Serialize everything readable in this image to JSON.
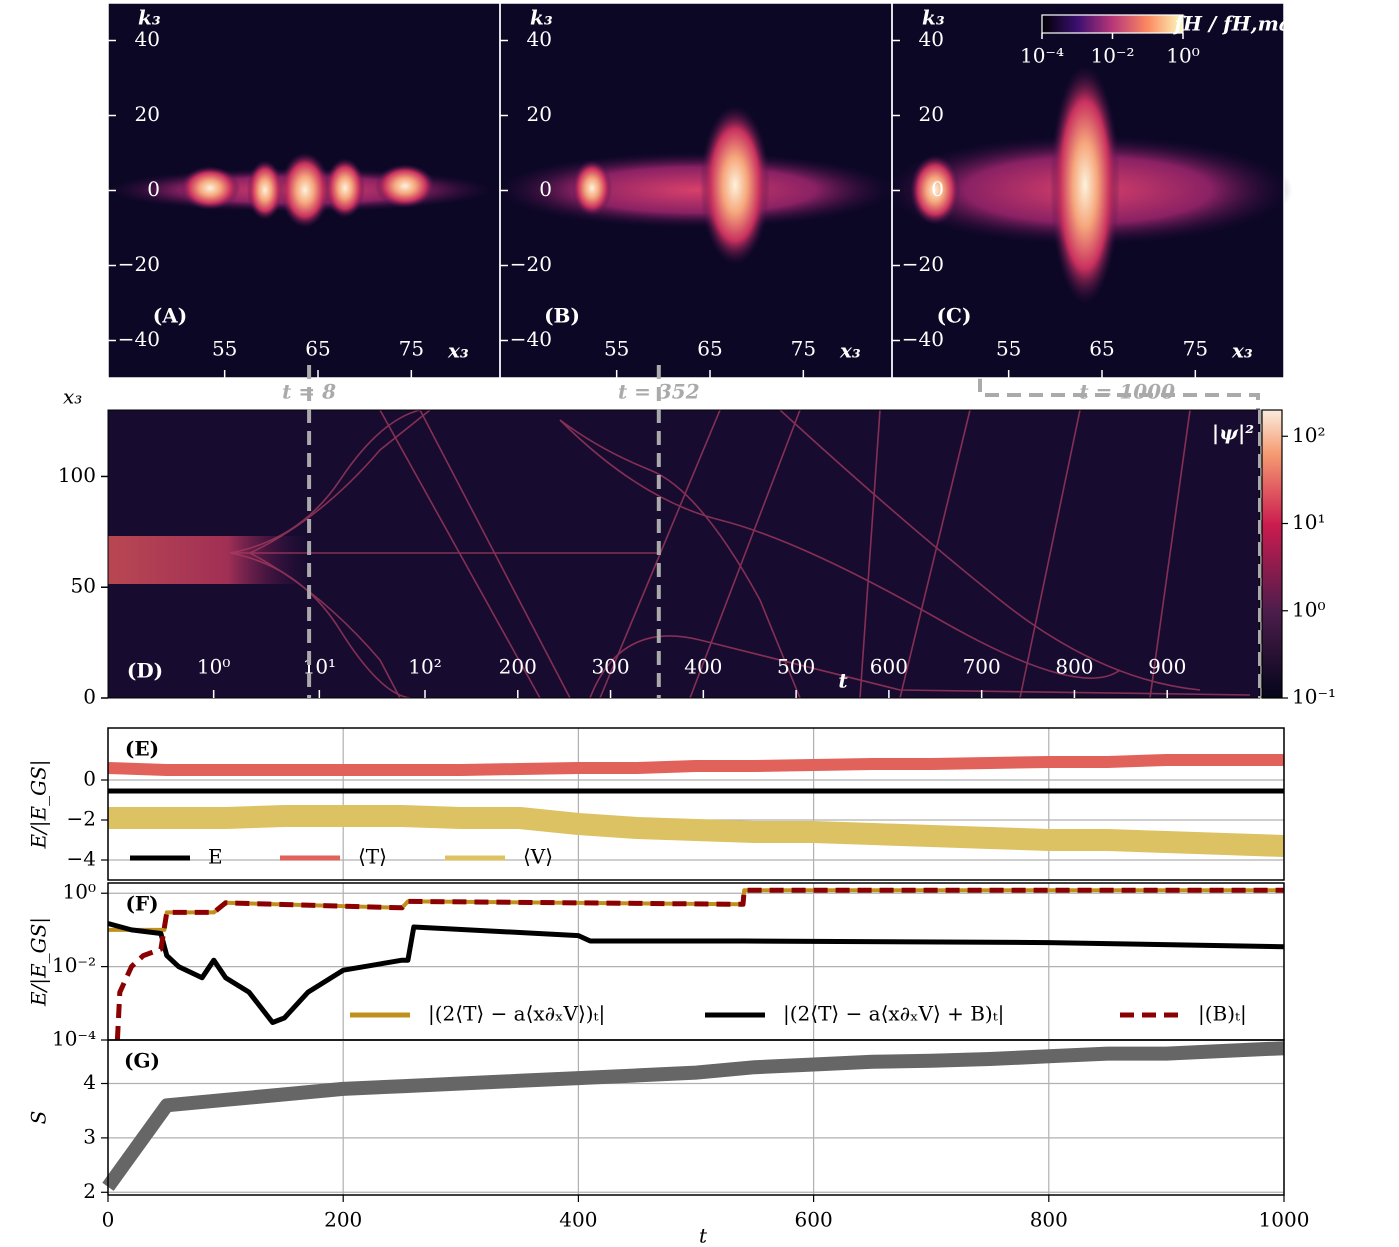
{
  "chart_data": [
    {
      "type": "heatmap",
      "panel": "(A)",
      "ylabel": "k₃",
      "xlabel": "x₃",
      "xlim": [
        42.5,
        84.5
      ],
      "ylim": [
        -50,
        50
      ],
      "xticks": [
        55,
        65,
        75
      ],
      "yticks": [
        40,
        20,
        0,
        {
          "value": -20,
          "label": "−20"
        },
        {
          "value": -40,
          "label": "−40"
        }
      ]
    },
    {
      "type": "heatmap",
      "panel": "(B)",
      "ylabel": "k₃",
      "xlabel": "x₃",
      "xlim": [
        42.5,
        84.5
      ],
      "ylim": [
        -50,
        50
      ],
      "xticks": [
        55,
        65,
        75
      ],
      "yticks": [
        40,
        20,
        0,
        {
          "value": -20,
          "label": "−20"
        },
        {
          "value": -40,
          "label": "−40"
        }
      ]
    },
    {
      "type": "heatmap",
      "panel": "(C)",
      "ylabel": "k₃",
      "xlabel": "x₃",
      "xlim": [
        42.5,
        84.5
      ],
      "ylim": [
        -50,
        50
      ],
      "xticks": [
        55,
        65,
        75
      ],
      "yticks": [
        40,
        20,
        0,
        {
          "value": -20,
          "label": "−20"
        },
        {
          "value": -40,
          "label": "−40"
        }
      ],
      "colorbar": {
        "label": "fH / fH,max",
        "scale": "log",
        "clim": [
          0.0001,
          1
        ],
        "ticks": [
          {
            "value": 0.0001,
            "label": "10⁻⁴"
          },
          {
            "value": 0.01,
            "label": "10⁻²"
          },
          {
            "value": 1,
            "label": "10⁰"
          }
        ]
      }
    },
    {
      "type": "heatmap",
      "panel": "(D)",
      "ylabel": "x₃",
      "xlabel": "t",
      "xscale": "log-linear",
      "xsplit": 100,
      "xlim": [
        0.1,
        1000
      ],
      "ylim": [
        0,
        130
      ],
      "xticks": [
        {
          "value": 1,
          "label": "10⁰"
        },
        {
          "value": 10,
          "label": "10¹"
        },
        {
          "value": 100,
          "label": "10²"
        },
        200,
        300,
        400,
        500,
        600,
        700,
        800,
        900
      ],
      "yticks": [
        0,
        50,
        100
      ],
      "markers": [
        {
          "value": 8,
          "label": "t = 8"
        },
        {
          "value": 352,
          "label": "t = 352"
        },
        {
          "value": 1000,
          "label": "t = 1000"
        }
      ],
      "colorbar": {
        "label": "|ψ|²",
        "scale": "log",
        "clim": [
          0.1,
          200
        ],
        "ticks": [
          {
            "value": 0.1,
            "label": "10⁻¹"
          },
          {
            "value": 1,
            "label": "10⁰"
          },
          {
            "value": 10,
            "label": "10¹"
          },
          {
            "value": 100,
            "label": "10²"
          }
        ]
      }
    },
    {
      "type": "line",
      "panel": "(E)",
      "ylabel": "E/|E_GS|",
      "xlim": [
        0,
        1000
      ],
      "ylim": [
        -5,
        2.6
      ],
      "grid": true,
      "xticks": [
        0,
        200,
        400,
        600,
        800,
        1000
      ],
      "yticks": [
        0,
        {
          "value": -2,
          "label": "−2"
        },
        {
          "value": -4,
          "label": "−4"
        }
      ],
      "legend": "lower left",
      "x": [
        0,
        50,
        100,
        150,
        200,
        250,
        300,
        350,
        400,
        450,
        500,
        550,
        600,
        650,
        700,
        750,
        800,
        850,
        900,
        950,
        1000
      ],
      "series": [
        {
          "name": "E",
          "color": "#000000",
          "values": [
            -0.55,
            -0.55,
            -0.55,
            -0.55,
            -0.55,
            -0.55,
            -0.55,
            -0.55,
            -0.55,
            -0.55,
            -0.55,
            -0.55,
            -0.55,
            -0.55,
            -0.55,
            -0.55,
            -0.55,
            -0.55,
            -0.55,
            -0.55,
            -0.55
          ]
        },
        {
          "name": "⟨T⟩",
          "color": "#e0625a",
          "values": [
            0.6,
            0.5,
            0.5,
            0.5,
            0.5,
            0.5,
            0.5,
            0.55,
            0.6,
            0.6,
            0.7,
            0.7,
            0.75,
            0.8,
            0.8,
            0.85,
            0.9,
            0.9,
            1.0,
            1.0,
            1.0
          ]
        },
        {
          "name": "⟨V⟩",
          "color": "#dcc262",
          "values": [
            -1.9,
            -1.9,
            -1.9,
            -1.8,
            -1.8,
            -1.8,
            -1.9,
            -1.9,
            -2.2,
            -2.4,
            -2.5,
            -2.6,
            -2.6,
            -2.7,
            -2.8,
            -2.9,
            -3.0,
            -3.0,
            -3.1,
            -3.2,
            -3.3
          ]
        }
      ]
    },
    {
      "type": "line",
      "panel": "(F)",
      "ylabel": "E/|E_GS|",
      "xlim": [
        0,
        1000
      ],
      "ylim": [
        0.0001,
        1.9
      ],
      "ylog": true,
      "grid": true,
      "xticks": [
        0,
        200,
        400,
        600,
        800,
        1000
      ],
      "yticks": [
        {
          "value": 1,
          "label": "10⁰"
        },
        {
          "value": 0.01,
          "label": "10⁻²"
        },
        {
          "value": 0.0001,
          "label": "10⁻⁴"
        }
      ],
      "legend": "lower right",
      "series": [
        {
          "name": "|(2⟨T⟩ − a⟨x∂ₓV⟩)ₜ|",
          "color": "#c0901c",
          "x": [
            0,
            48,
            50,
            90,
            100,
            250,
            255,
            540,
            541,
            1000
          ],
          "values": [
            0.1,
            0.1,
            0.3,
            0.3,
            0.55,
            0.4,
            0.6,
            0.5,
            1.2,
            1.2
          ]
        },
        {
          "name": "|(2⟨T⟩ − a⟨x∂ₓV⟩ + B)ₜ|",
          "color": "#000000",
          "x": [
            0,
            20,
            45,
            50,
            60,
            80,
            90,
            100,
            120,
            140,
            150,
            170,
            200,
            250,
            255,
            260,
            400,
            410,
            540,
            800,
            1000
          ],
          "values": [
            0.15,
            0.1,
            0.08,
            0.02,
            0.01,
            0.005,
            0.015,
            0.005,
            0.002,
            0.0003,
            0.0004,
            0.002,
            0.008,
            0.015,
            0.015,
            0.12,
            0.07,
            0.05,
            0.05,
            0.045,
            0.035
          ]
        },
        {
          "name": "|(B)ₜ|",
          "color": "#8b0000",
          "style": "dashed",
          "x": [
            8,
            10,
            20,
            30,
            45,
            50,
            90,
            100,
            250,
            255,
            540,
            541,
            1000
          ],
          "values": [
            0.0001,
            0.002,
            0.01,
            0.02,
            0.03,
            0.3,
            0.3,
            0.55,
            0.4,
            0.6,
            0.5,
            1.2,
            1.2
          ]
        }
      ]
    },
    {
      "type": "line",
      "panel": "(G)",
      "ylabel": "S",
      "xlabel": "t",
      "xlim": [
        0,
        1000
      ],
      "ylim": [
        1.95,
        4.8
      ],
      "grid": true,
      "xticks": [
        0,
        200,
        400,
        600,
        800,
        1000
      ],
      "yticks": [
        2,
        3,
        4
      ],
      "x": [
        0,
        50,
        100,
        150,
        200,
        250,
        300,
        350,
        400,
        450,
        500,
        550,
        600,
        650,
        700,
        750,
        800,
        850,
        900,
        950,
        1000
      ],
      "series": [
        {
          "name": "S",
          "color": "#666666",
          "values": [
            2.1,
            3.6,
            3.7,
            3.8,
            3.9,
            3.95,
            4.0,
            4.05,
            4.1,
            4.15,
            4.2,
            4.3,
            4.35,
            4.4,
            4.42,
            4.45,
            4.5,
            4.55,
            4.55,
            4.6,
            4.65
          ]
        }
      ]
    }
  ]
}
